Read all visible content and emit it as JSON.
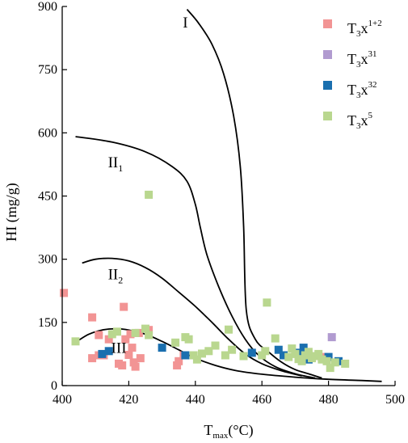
{
  "chart_data": {
    "type": "scatter",
    "title": "",
    "xlabel_main": "T",
    "xlabel_sub": "max",
    "xlabel_unit": "(°C)",
    "ylabel": "HI (mg/g)",
    "xlim": [
      400,
      500
    ],
    "ylim": [
      0,
      900
    ],
    "xticks": [
      400,
      420,
      440,
      460,
      480,
      500
    ],
    "yticks": [
      0,
      150,
      300,
      450,
      600,
      750,
      900
    ],
    "grid": false,
    "legend_position": "top-right",
    "series": [
      {
        "name": "T3x1+2",
        "label_main": "T",
        "label_sub": "3",
        "label_mid": "x",
        "label_sup": "1+2",
        "color": "#f29494",
        "points": [
          [
            400.5,
            220
          ],
          [
            409,
            162
          ],
          [
            409,
            65
          ],
          [
            411,
            120
          ],
          [
            411,
            72
          ],
          [
            412.5,
            72
          ],
          [
            414,
            110
          ],
          [
            417,
            52
          ],
          [
            418,
            48
          ],
          [
            418.5,
            187
          ],
          [
            419,
            110
          ],
          [
            420,
            73
          ],
          [
            420.5,
            122
          ],
          [
            421,
            90
          ],
          [
            421.5,
            55
          ],
          [
            422,
            45
          ],
          [
            423,
            125
          ],
          [
            423.5,
            65
          ],
          [
            426,
            132
          ],
          [
            434.5,
            48
          ],
          [
            435,
            58
          ],
          [
            436.5,
            72
          ],
          [
            478.5,
            68
          ]
        ]
      },
      {
        "name": "T3x31",
        "label_main": "T",
        "label_sub": "3",
        "label_mid": "x",
        "label_sup": "31",
        "color": "#b19bd0",
        "points": [
          [
            481,
            115
          ]
        ]
      },
      {
        "name": "T3x32",
        "label_main": "T",
        "label_sub": "3",
        "label_mid": "x",
        "label_sup": "32",
        "color": "#1a6faf",
        "points": [
          [
            412,
            75
          ],
          [
            414,
            82
          ],
          [
            430,
            90
          ],
          [
            437,
            72
          ],
          [
            457,
            78
          ],
          [
            465,
            85
          ],
          [
            466.5,
            72
          ],
          [
            471,
            78
          ],
          [
            472.5,
            90
          ],
          [
            474,
            62
          ],
          [
            480,
            68
          ],
          [
            483,
            58
          ]
        ]
      },
      {
        "name": "T3x5",
        "label_main": "T",
        "label_sub": "3",
        "label_mid": "x",
        "label_sup": "5",
        "color": "#b9d78f",
        "points": [
          [
            404,
            105
          ],
          [
            415,
            122
          ],
          [
            416.5,
            128
          ],
          [
            422,
            125
          ],
          [
            425,
            135
          ],
          [
            426,
            453
          ],
          [
            426,
            120
          ],
          [
            434,
            102
          ],
          [
            437,
            115
          ],
          [
            438,
            110
          ],
          [
            439.5,
            72
          ],
          [
            440.5,
            62
          ],
          [
            442,
            76
          ],
          [
            444,
            82
          ],
          [
            446,
            95
          ],
          [
            449,
            72
          ],
          [
            450,
            133
          ],
          [
            451,
            85
          ],
          [
            454.5,
            70
          ],
          [
            460,
            72
          ],
          [
            461,
            82
          ],
          [
            461.5,
            197
          ],
          [
            464,
            112
          ],
          [
            468,
            68
          ],
          [
            469,
            88
          ],
          [
            470,
            75
          ],
          [
            471,
            63
          ],
          [
            472,
            58
          ],
          [
            473,
            72
          ],
          [
            474,
            80
          ],
          [
            475,
            65
          ],
          [
            476,
            70
          ],
          [
            477,
            75
          ],
          [
            478,
            62
          ],
          [
            479.5,
            58
          ],
          [
            480.5,
            42
          ],
          [
            482,
            55
          ],
          [
            485,
            52
          ]
        ]
      }
    ],
    "curves": [
      {
        "label": "I",
        "points": [
          [
            437.5,
            893
          ],
          [
            441,
            860
          ],
          [
            445,
            810
          ],
          [
            448.5,
            740
          ],
          [
            451.5,
            640
          ],
          [
            453.5,
            520
          ],
          [
            454.5,
            380
          ],
          [
            455.3,
            180
          ],
          [
            458,
            110
          ],
          [
            462,
            80
          ],
          [
            466,
            55
          ],
          [
            470,
            38
          ],
          [
            474,
            28
          ],
          [
            478,
            18
          ]
        ]
      },
      {
        "label": "II1",
        "points": [
          [
            404,
            591
          ],
          [
            415,
            578
          ],
          [
            425,
            555
          ],
          [
            433,
            520
          ],
          [
            437.5,
            485
          ],
          [
            440,
            430
          ],
          [
            441.5,
            375
          ],
          [
            443.5,
            310
          ],
          [
            447,
            235
          ],
          [
            451,
            165
          ],
          [
            455,
            110
          ],
          [
            459,
            72
          ],
          [
            464,
            45
          ],
          [
            470,
            28
          ],
          [
            476,
            18
          ]
        ]
      },
      {
        "label": "II2",
        "points": [
          [
            406,
            291
          ],
          [
            410,
            300
          ],
          [
            415,
            302
          ],
          [
            420,
            296
          ],
          [
            425,
            280
          ],
          [
            430,
            255
          ],
          [
            435,
            222
          ],
          [
            440,
            188
          ],
          [
            445,
            150
          ],
          [
            450,
            110
          ],
          [
            455,
            75
          ],
          [
            460,
            52
          ],
          [
            466,
            35
          ],
          [
            472,
            23
          ]
        ]
      },
      {
        "label": "III",
        "points": [
          [
            405,
            108
          ],
          [
            408,
            122
          ],
          [
            412,
            132
          ],
          [
            416,
            135
          ],
          [
            420,
            132
          ],
          [
            425,
            122
          ],
          [
            430,
            105
          ],
          [
            435,
            85
          ],
          [
            440,
            65
          ],
          [
            446,
            48
          ],
          [
            452,
            36
          ],
          [
            460,
            27
          ],
          [
            470,
            20
          ],
          [
            480,
            15
          ],
          [
            490,
            12
          ],
          [
            496,
            10
          ]
        ]
      }
    ],
    "curve_labels": [
      {
        "main": "I",
        "sub": "",
        "x": 437,
        "y": 850
      },
      {
        "main": "II",
        "sub": "1",
        "x": 416,
        "y": 518
      },
      {
        "main": "II",
        "sub": "2",
        "x": 416,
        "y": 252
      },
      {
        "main": "III",
        "sub": "",
        "x": 417,
        "y": 78
      }
    ]
  }
}
